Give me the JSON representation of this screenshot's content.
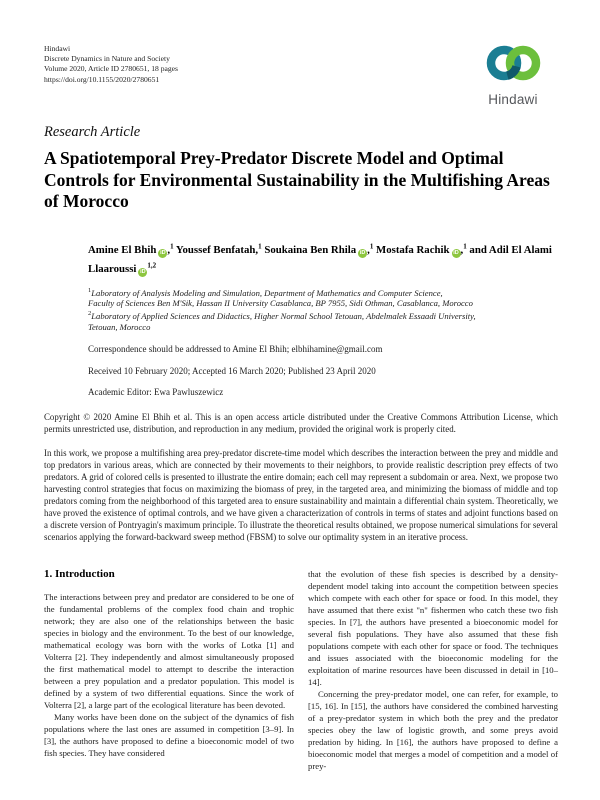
{
  "header": {
    "publisher": "Hindawi",
    "journal": "Discrete Dynamics in Nature and Society",
    "volume_line": "Volume 2020, Article ID 2780651, 18 pages",
    "doi": "https://doi.org/10.1155/2020/2780651"
  },
  "logo": {
    "wordmark": "Hindawi",
    "teal": "#1b7e93",
    "teal_dark": "#10596b",
    "green": "#6cbf3c",
    "text_color": "#55575b",
    "orcid_green": "#8dc63f"
  },
  "article": {
    "type_label": "Research Article",
    "title": "A Spatiotemporal Prey-Predator Discrete Model and Optimal Controls for Environmental Sustainability in the Multifishing Areas of Morocco",
    "authors": [
      {
        "name": "Amine El Bhih",
        "orcid": true,
        "comma": true,
        "sup": "1"
      },
      {
        "name": "Youssef Benfatah",
        "orcid": false,
        "comma": true,
        "sup": "1"
      },
      {
        "name": "Soukaina Ben Rhila",
        "orcid": true,
        "comma": true,
        "sup": "1"
      },
      {
        "name": "Mostafa Rachik",
        "orcid": true,
        "comma": true,
        "sup": "1"
      },
      {
        "name": "and Adil El Alami Llaaroussi",
        "orcid": true,
        "comma": false,
        "sup": "1,2"
      }
    ],
    "affiliations": [
      {
        "sup": "1",
        "lines": [
          "Laboratory of Analysis Modeling and Simulation, Department of Mathematics and Computer Science,",
          "Faculty of Sciences Ben M'Sik, Hassan II University Casablanca, BP 7955, Sidi Othman, Casablanca, Morocco"
        ]
      },
      {
        "sup": "2",
        "lines": [
          "Laboratory of Applied Sciences and Didactics, Higher Normal School Tetouan, Abdelmalek Essaadi University,",
          "Tetouan, Morocco"
        ]
      }
    ],
    "correspondence": "Correspondence should be addressed to Amine El Bhih; elbhihamine@gmail.com",
    "history": "Received 10 February 2020; Accepted 16 March 2020; Published 23 April 2020",
    "editor": "Academic Editor: Ewa Pawluszewicz",
    "copyright": "Copyright © 2020 Amine El Bhih et al. This is an open access article distributed under the Creative Commons Attribution License, which permits unrestricted use, distribution, and reproduction in any medium, provided the original work is properly cited.",
    "abstract": "In this work, we propose a multifishing area prey-predator discrete-time model which describes the interaction between the prey and middle and top predators in various areas, which are connected by their movements to their neighbors, to provide realistic description prey effects of two predators. A grid of colored cells is presented to illustrate the entire domain; each cell may represent a subdomain or area. Next, we propose two harvesting control strategies that focus on maximizing the biomass of prey, in the targeted area, and minimizing the biomass of middle and top predators coming from the neighborhood of this targeted area to ensure sustainability and maintain a differential chain system. Theoretically, we have proved the existence of optimal controls, and we have given a characterization of controls in terms of states and adjoint functions based on a discrete version of Pontryagin's maximum principle. To illustrate the theoretical results obtained, we propose numerical simulations for several scenarios applying the forward-backward sweep method (FBSM) to solve our optimality system in an iterative process."
  },
  "body": {
    "section_heading": "1. Introduction",
    "left_column": [
      {
        "indent": false,
        "text": "The interactions between prey and predator are considered to be one of the fundamental problems of the complex food chain and trophic network; they are also one of the relationships between the basic species in biology and the environment. To the best of our knowledge, mathematical ecology was born with the works of Lotka [1] and Volterra [2]. They independently and almost simultaneously proposed the first mathematical model to attempt to describe the interaction between a prey population and a predator population. This model is defined by a system of two differential equations. Since the work of Volterra [2], a large part of the ecological literature has been devoted."
      },
      {
        "indent": true,
        "text": "Many works have been done on the subject of the dynamics of fish populations where the last ones are assumed in competition [3–9]. In [3], the authors have proposed to define a bioeconomic model of two fish species. They have considered"
      }
    ],
    "right_column": [
      {
        "indent": false,
        "text": "that the evolution of these fish species is described by a density-dependent model taking into account the competition between species which compete with each other for space or food. In this model, they have assumed that there exist \"n\" fishermen who catch these two fish species. In [7], the authors have presented a bioeconomic model for several fish populations. They have also assumed that these fish populations compete with each other for space or food. The techniques and issues associated with the bioeconomic modeling for the exploitation of marine resources have been discussed in detail in [10–14]."
      },
      {
        "indent": true,
        "text": "Concerning the prey-predator model, one can refer, for example, to [15, 16]. In [15], the authors have considered the combined harvesting of a prey-predator system in which both the prey and the predator species obey the law of logistic growth, and some preys avoid predation by hiding. In [16], the authors have proposed to define a bioeconomic model that merges a model of competition and a model of prey-"
      }
    ]
  }
}
